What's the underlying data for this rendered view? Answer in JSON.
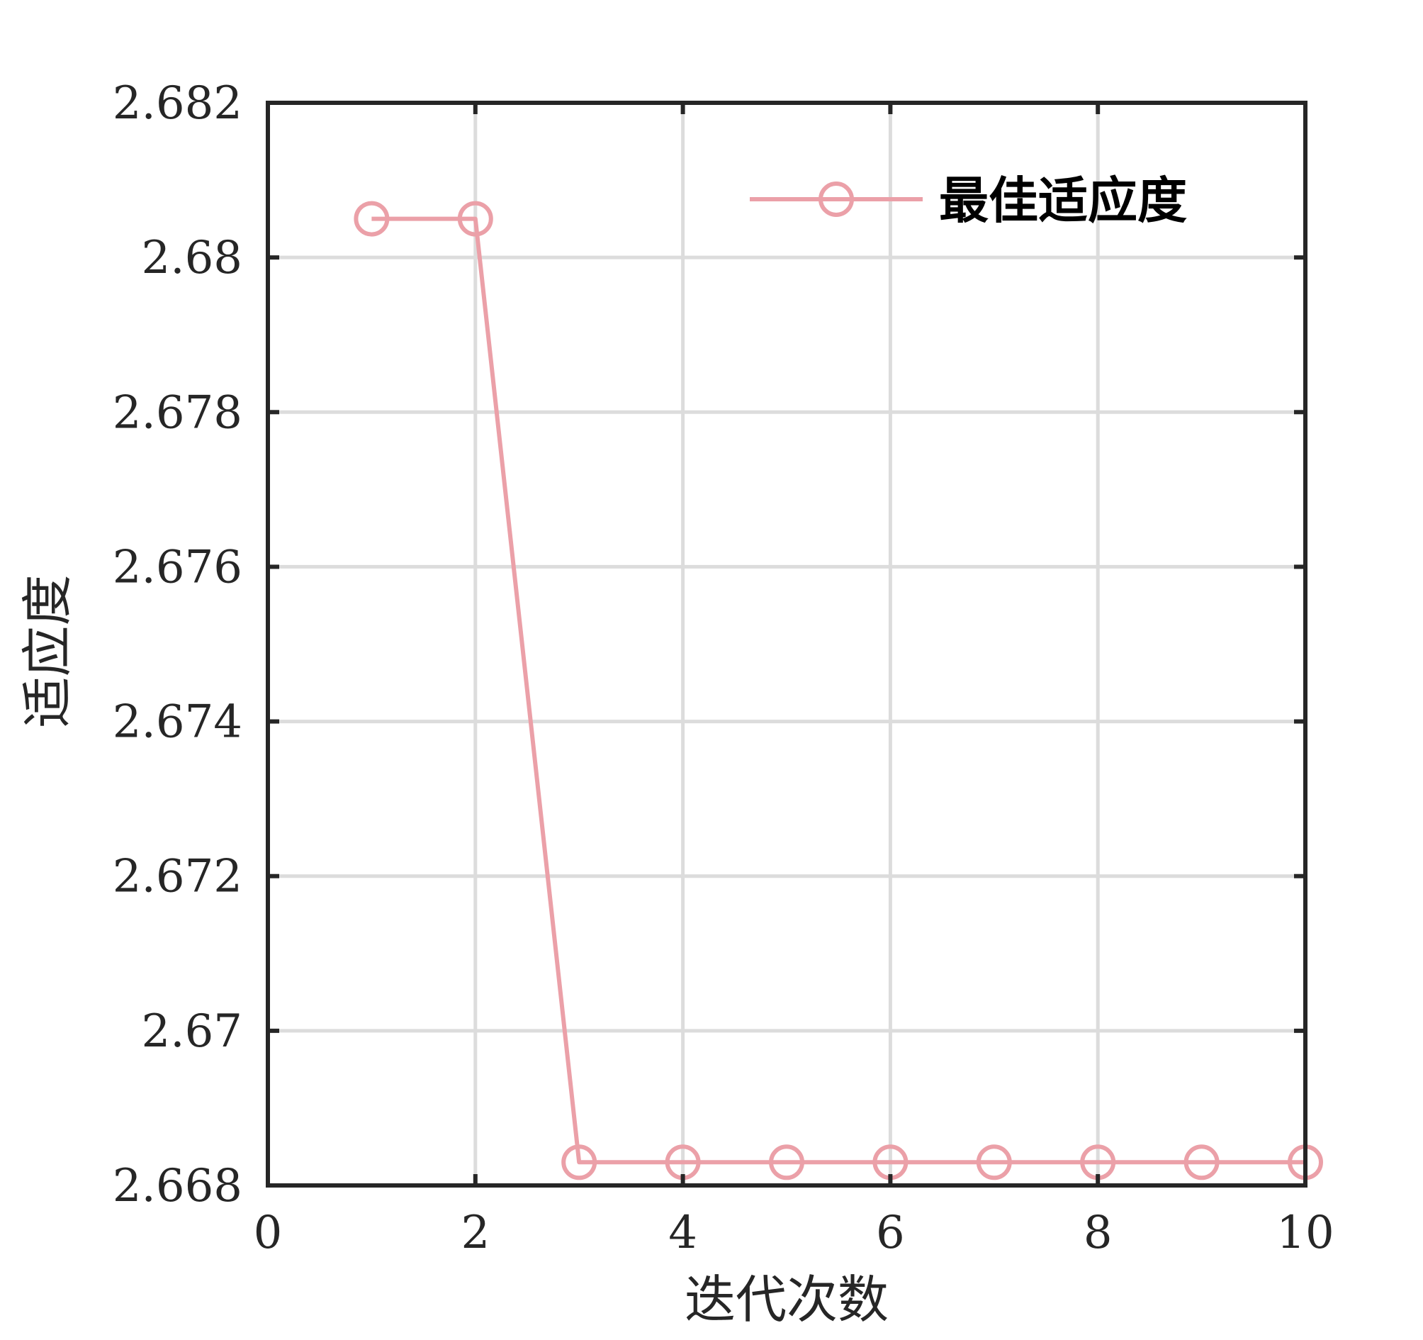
{
  "chart_data": {
    "type": "line",
    "xlabel": "迭代次数",
    "ylabel": "适应度",
    "xlim": [
      0,
      10
    ],
    "ylim": [
      2.668,
      2.682
    ],
    "xticks": [
      0,
      2,
      4,
      6,
      8,
      10
    ],
    "xtick_labels": [
      "0",
      "2",
      "4",
      "6",
      "8",
      "10"
    ],
    "yticks": [
      2.668,
      2.67,
      2.672,
      2.674,
      2.676,
      2.678,
      2.68,
      2.682
    ],
    "ytick_labels": [
      "2.668",
      "2.67",
      "2.672",
      "2.674",
      "2.676",
      "2.678",
      "2.68",
      "2.682"
    ],
    "grid": true,
    "legend_position": "top-right",
    "series": [
      {
        "name": "最佳适应度",
        "color": "#eba0a8",
        "marker": "circle-open",
        "x": [
          1,
          2,
          3,
          4,
          5,
          6,
          7,
          8,
          9,
          10
        ],
        "y": [
          2.6805,
          2.6805,
          2.6683,
          2.6683,
          2.6683,
          2.6683,
          2.6683,
          2.6683,
          2.6683,
          2.6683
        ]
      }
    ]
  }
}
